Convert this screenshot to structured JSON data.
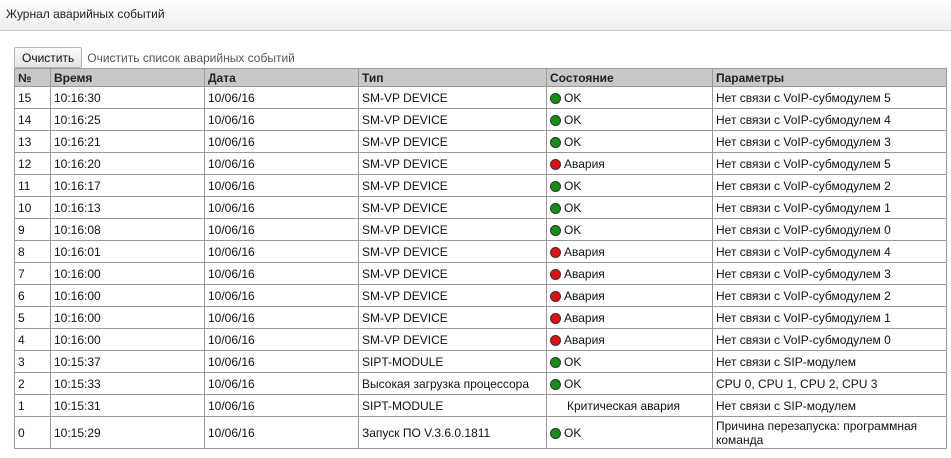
{
  "title": "Журнал аварийных событий",
  "toolbar": {
    "clear_label": "Очистить",
    "clear_hint": "Очистить список аварийных событий"
  },
  "colors": {
    "ok": "#139013",
    "alarm": "#e01010"
  },
  "columns": [
    "№",
    "Время",
    "Дата",
    "Тип",
    "Состояние",
    "Параметры"
  ],
  "rows": [
    {
      "n": "15",
      "time": "10:16:30",
      "date": "10/06/16",
      "type": "SM-VP DEVICE",
      "status": "OK",
      "icon": "green-dot",
      "params": "Нет связи с VoIP-субмодулем 5"
    },
    {
      "n": "14",
      "time": "10:16:25",
      "date": "10/06/16",
      "type": "SM-VP DEVICE",
      "status": "OK",
      "icon": "green-dot",
      "params": "Нет связи с VoIP-субмодулем 4"
    },
    {
      "n": "13",
      "time": "10:16:21",
      "date": "10/06/16",
      "type": "SM-VP DEVICE",
      "status": "OK",
      "icon": "green-dot",
      "params": "Нет связи с VoIP-субмодулем 3"
    },
    {
      "n": "12",
      "time": "10:16:20",
      "date": "10/06/16",
      "type": "SM-VP DEVICE",
      "status": "Авария",
      "icon": "red-dot",
      "params": "Нет связи с VoIP-субмодулем 5"
    },
    {
      "n": "11",
      "time": "10:16:17",
      "date": "10/06/16",
      "type": "SM-VP DEVICE",
      "status": "OK",
      "icon": "green-dot",
      "params": "Нет связи с VoIP-субмодулем 2"
    },
    {
      "n": "10",
      "time": "10:16:13",
      "date": "10/06/16",
      "type": "SM-VP DEVICE",
      "status": "OK",
      "icon": "green-dot",
      "params": "Нет связи с VoIP-субмодулем 1"
    },
    {
      "n": "9",
      "time": "10:16:08",
      "date": "10/06/16",
      "type": "SM-VP DEVICE",
      "status": "OK",
      "icon": "green-dot",
      "params": "Нет связи с VoIP-субмодулем 0"
    },
    {
      "n": "8",
      "time": "10:16:01",
      "date": "10/06/16",
      "type": "SM-VP DEVICE",
      "status": "Авария",
      "icon": "red-dot",
      "params": "Нет связи с VoIP-субмодулем 4"
    },
    {
      "n": "7",
      "time": "10:16:00",
      "date": "10/06/16",
      "type": "SM-VP DEVICE",
      "status": "Авария",
      "icon": "red-dot",
      "params": "Нет связи с VoIP-субмодулем 3"
    },
    {
      "n": "6",
      "time": "10:16:00",
      "date": "10/06/16",
      "type": "SM-VP DEVICE",
      "status": "Авария",
      "icon": "red-dot",
      "params": "Нет связи с VoIP-субмодулем 2"
    },
    {
      "n": "5",
      "time": "10:16:00",
      "date": "10/06/16",
      "type": "SM-VP DEVICE",
      "status": "Авария",
      "icon": "red-dot",
      "params": "Нет связи с VoIP-субмодулем 1"
    },
    {
      "n": "4",
      "time": "10:16:00",
      "date": "10/06/16",
      "type": "SM-VP DEVICE",
      "status": "Авария",
      "icon": "red-dot",
      "params": "Нет связи с VoIP-субмодулем 0"
    },
    {
      "n": "3",
      "time": "10:15:37",
      "date": "10/06/16",
      "type": "SIPT-MODULE",
      "status": "OK",
      "icon": "green-dot",
      "params": "Нет связи с SIP-модулем"
    },
    {
      "n": "2",
      "time": "10:15:33",
      "date": "10/06/16",
      "type": "Высокая загрузка процессора",
      "status": "OK",
      "icon": "green-dot",
      "params": "CPU 0, CPU 1, CPU 2, CPU 3"
    },
    {
      "n": "1",
      "time": "10:15:31",
      "date": "10/06/16",
      "type": "SIPT-MODULE",
      "status": "Критическая авария",
      "icon": "none",
      "params": "Нет связи с SIP-модулем"
    },
    {
      "n": "0",
      "time": "10:15:29",
      "date": "10/06/16",
      "type": "Запуск ПО V.3.6.0.1811",
      "status": "OK",
      "icon": "green-dot",
      "params": "Причина перезапуска: программная команда"
    }
  ]
}
